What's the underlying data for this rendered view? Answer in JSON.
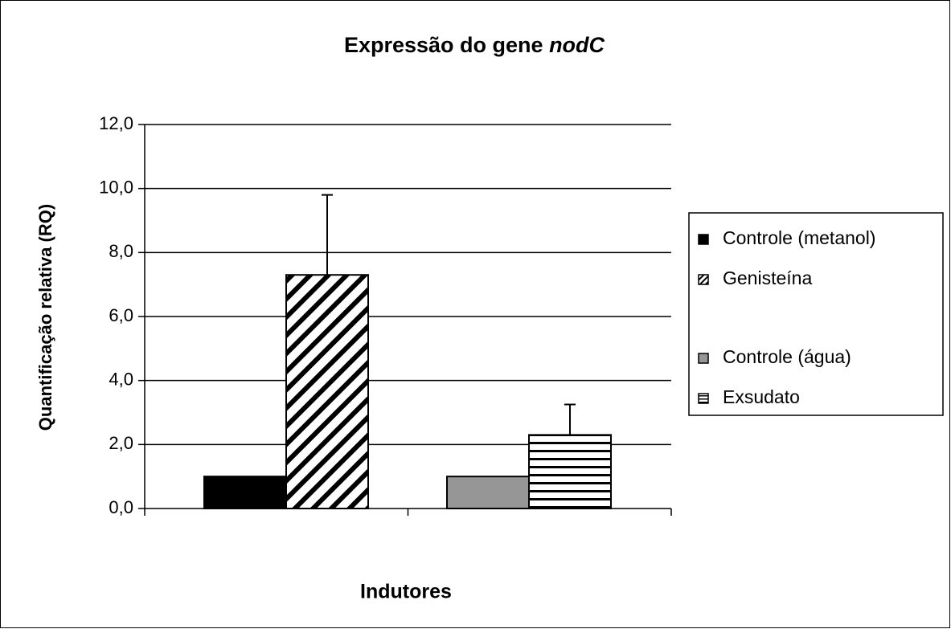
{
  "chart_data": {
    "type": "bar",
    "title": "Expressão do gene",
    "title_emphasis": "nodC",
    "x_label": "Indutores",
    "y_label": "Quantificação relativa (RQ)",
    "categories": [
      null,
      null
    ],
    "series": [
      {
        "name": "Controle (metanol)",
        "color": "#000000",
        "pattern": "solid",
        "values": [
          1.0,
          null
        ],
        "errors": [
          null,
          null
        ]
      },
      {
        "name": "Genisteína",
        "color": "#000000",
        "pattern": "diagonal",
        "values": [
          7.3,
          null
        ],
        "errors": [
          2.5,
          null
        ]
      },
      {
        "name": "Controle (água)",
        "color": "#969696",
        "pattern": "solid",
        "values": [
          null,
          1.0
        ],
        "errors": [
          null,
          null
        ]
      },
      {
        "name": "Exsudato",
        "color": "#000000",
        "pattern": "horizontal",
        "values": [
          null,
          2.3
        ],
        "errors": [
          null,
          0.95
        ]
      }
    ],
    "ylim": [
      0,
      12
    ],
    "yticks": [
      {
        "value": 0,
        "label": "0,0"
      },
      {
        "value": 2,
        "label": "2,0"
      },
      {
        "value": 4,
        "label": "4,0"
      },
      {
        "value": 6,
        "label": "6,0"
      },
      {
        "value": 8,
        "label": "8,0"
      },
      {
        "value": 10,
        "label": "10,0"
      },
      {
        "value": 12,
        "label": "12,0"
      }
    ],
    "grid": true,
    "legend": "right"
  }
}
